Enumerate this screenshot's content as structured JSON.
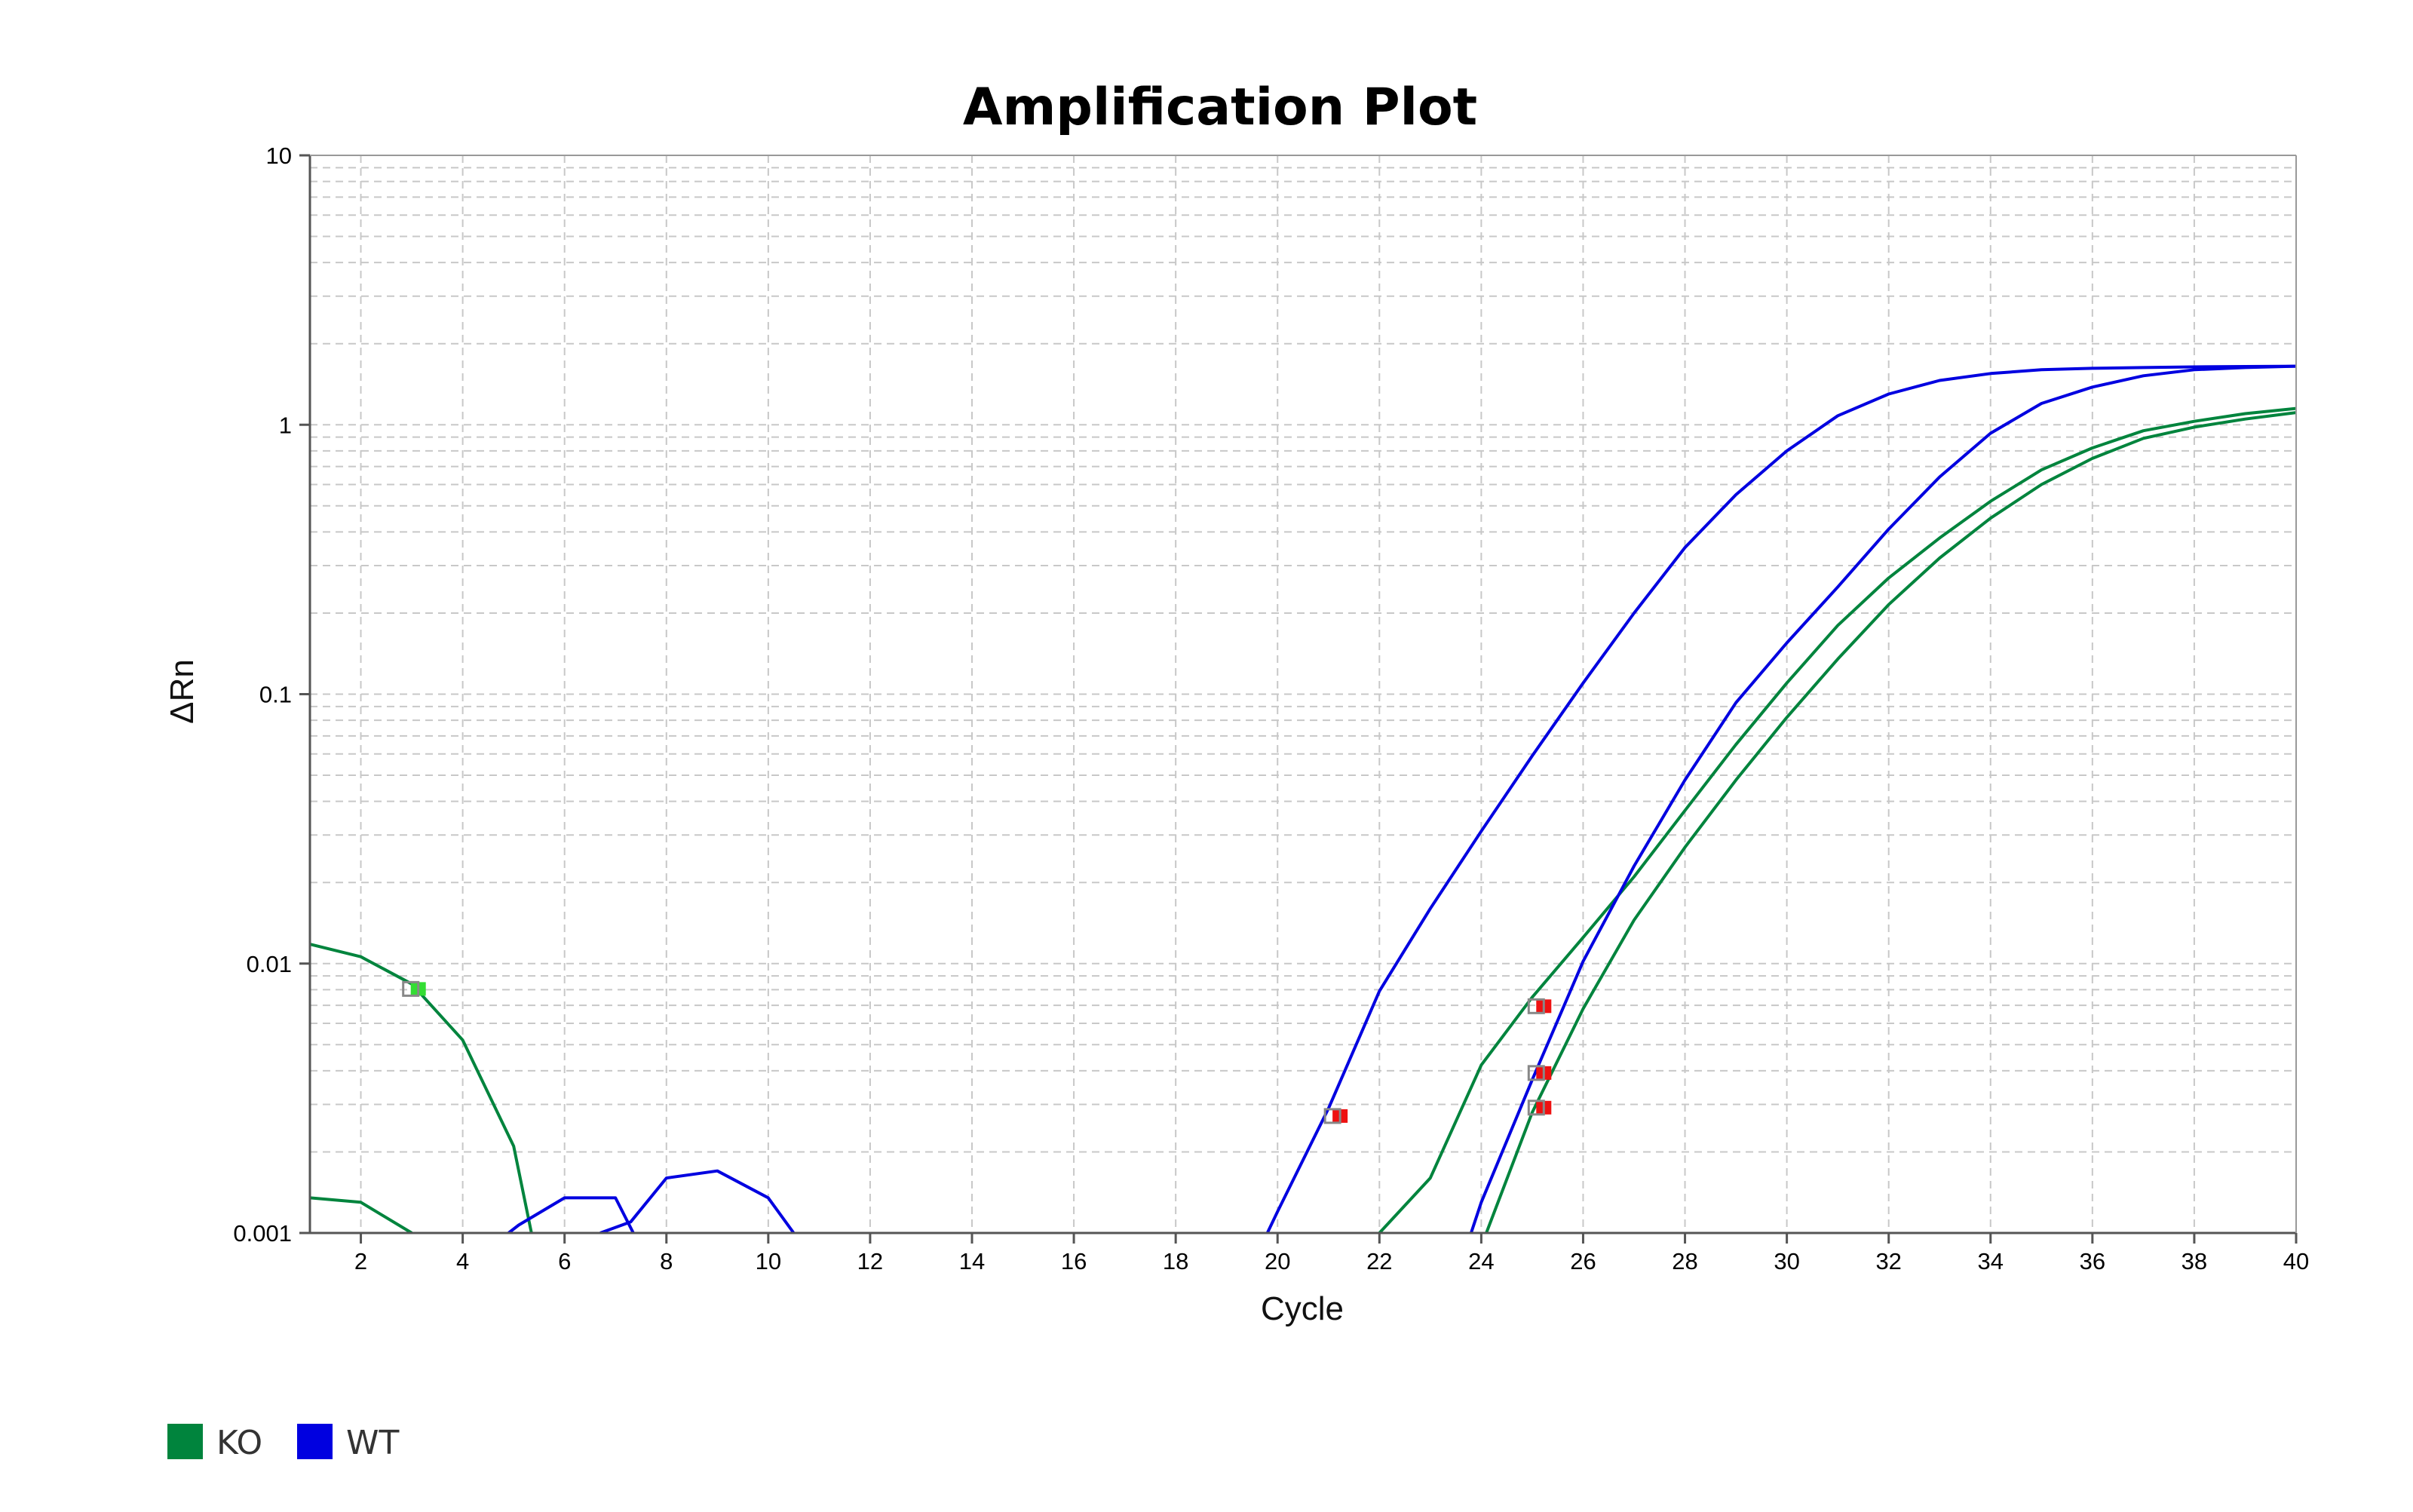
{
  "chart_data": {
    "type": "line",
    "title": "Amplification Plot",
    "xlabel": "Cycle",
    "ylabel": "ΔRn",
    "xlim": [
      1,
      40
    ],
    "ylim": [
      0.001,
      10
    ],
    "y_scale": "log",
    "grid": true,
    "x_ticks": [
      "2",
      "4",
      "6",
      "8",
      "10",
      "12",
      "14",
      "16",
      "18",
      "20",
      "22",
      "24",
      "26",
      "28",
      "30",
      "32",
      "34",
      "36",
      "38",
      "40"
    ],
    "y_ticks": [
      "0.001",
      "0.01",
      "0.1",
      "1",
      "10"
    ],
    "legend": {
      "position": "bottom-left",
      "entries": [
        {
          "label": "KO",
          "color": "#00843d"
        },
        {
          "label": "WT",
          "color": "#0000e0"
        }
      ]
    },
    "series": [
      {
        "group": "KO",
        "color": "#00843d",
        "points": [
          [
            1,
            0.0118
          ],
          [
            2,
            0.0106
          ],
          [
            3,
            0.0084
          ],
          [
            4,
            0.0052
          ],
          [
            5,
            0.0021
          ],
          [
            5.35,
            0.001
          ]
        ]
      },
      {
        "group": "KO",
        "color": "#00843d",
        "points": [
          [
            1,
            0.00135
          ],
          [
            2,
            0.0013
          ],
          [
            3,
            0.001
          ]
        ]
      },
      {
        "group": "KO",
        "color": "#00843d",
        "points": [
          [
            22,
            0.001
          ],
          [
            23,
            0.0016
          ],
          [
            24,
            0.0042
          ],
          [
            25,
            0.0075
          ],
          [
            26,
            0.0125
          ],
          [
            27,
            0.021
          ],
          [
            28,
            0.037
          ],
          [
            29,
            0.065
          ],
          [
            30,
            0.11
          ],
          [
            31,
            0.18
          ],
          [
            32,
            0.27
          ],
          [
            33,
            0.38
          ],
          [
            34,
            0.52
          ],
          [
            35,
            0.68
          ],
          [
            36,
            0.82
          ],
          [
            37,
            0.95
          ],
          [
            38,
            1.03
          ],
          [
            39,
            1.1
          ],
          [
            40,
            1.15
          ]
        ]
      },
      {
        "group": "KO",
        "color": "#00843d",
        "points": [
          [
            24.1,
            0.001
          ],
          [
            25,
            0.0028
          ],
          [
            26,
            0.0068
          ],
          [
            27,
            0.0145
          ],
          [
            28,
            0.027
          ],
          [
            29,
            0.048
          ],
          [
            30,
            0.082
          ],
          [
            31,
            0.135
          ],
          [
            32,
            0.215
          ],
          [
            33,
            0.32
          ],
          [
            34,
            0.45
          ],
          [
            35,
            0.6
          ],
          [
            36,
            0.75
          ],
          [
            37,
            0.89
          ],
          [
            38,
            0.98
          ],
          [
            39,
            1.05
          ],
          [
            40,
            1.11
          ]
        ]
      },
      {
        "group": "WT",
        "color": "#0000e0",
        "points": [
          [
            4.9,
            0.001
          ],
          [
            5.1,
            0.00107
          ],
          [
            6,
            0.00135
          ],
          [
            7,
            0.00135
          ],
          [
            7.35,
            0.001
          ]
        ]
      },
      {
        "group": "WT",
        "color": "#0000e0",
        "points": [
          [
            6.7,
            0.001
          ],
          [
            7.3,
            0.0011
          ],
          [
            8,
            0.0016
          ],
          [
            9,
            0.0017
          ],
          [
            10,
            0.00135
          ],
          [
            10.5,
            0.001
          ]
        ]
      },
      {
        "group": "WT",
        "color": "#0000e0",
        "points": [
          [
            19.8,
            0.001
          ],
          [
            20,
            0.0012
          ],
          [
            21,
            0.0029
          ],
          [
            22,
            0.0079
          ],
          [
            23,
            0.016
          ],
          [
            24,
            0.031
          ],
          [
            25,
            0.059
          ],
          [
            26,
            0.11
          ],
          [
            27,
            0.2
          ],
          [
            28,
            0.35
          ],
          [
            29,
            0.55
          ],
          [
            30,
            0.8
          ],
          [
            31,
            1.08
          ],
          [
            32,
            1.3
          ],
          [
            33,
            1.46
          ],
          [
            34,
            1.55
          ],
          [
            35,
            1.6
          ],
          [
            36,
            1.62
          ],
          [
            37,
            1.63
          ],
          [
            38,
            1.64
          ],
          [
            39,
            1.645
          ],
          [
            40,
            1.65
          ]
        ]
      },
      {
        "group": "WT",
        "color": "#0000e0",
        "points": [
          [
            23.8,
            0.001
          ],
          [
            24,
            0.0013
          ],
          [
            25,
            0.0037
          ],
          [
            26,
            0.0102
          ],
          [
            27,
            0.023
          ],
          [
            28,
            0.048
          ],
          [
            29,
            0.093
          ],
          [
            30,
            0.155
          ],
          [
            31,
            0.25
          ],
          [
            32,
            0.41
          ],
          [
            33,
            0.64
          ],
          [
            34,
            0.93
          ],
          [
            35,
            1.2
          ],
          [
            36,
            1.38
          ],
          [
            37,
            1.52
          ],
          [
            38,
            1.6
          ],
          [
            39,
            1.63
          ],
          [
            40,
            1.65
          ]
        ]
      }
    ],
    "markers": [
      {
        "x": 2.95,
        "y": 0.008,
        "color": "#33dd33"
      },
      {
        "x": 21.05,
        "y": 0.0027,
        "color": "#ee1111"
      },
      {
        "x": 25.05,
        "y": 0.0069,
        "color": "#ee1111"
      },
      {
        "x": 25.05,
        "y": 0.0039,
        "color": "#ee1111"
      },
      {
        "x": 25.05,
        "y": 0.0029,
        "color": "#ee1111"
      }
    ]
  }
}
